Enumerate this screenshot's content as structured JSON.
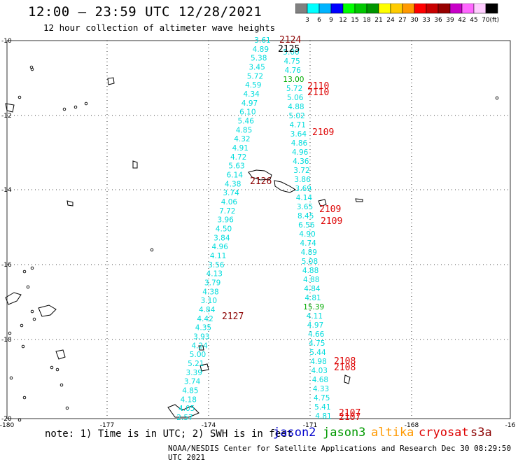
{
  "title": "12:00 – 23:59 UTC 12/28/2021",
  "subtitle": "12 hour collection of altimeter wave heights",
  "legend": {
    "unit_label": "(ft)",
    "ticks": [
      "3",
      "6",
      "9",
      "12",
      "15",
      "18",
      "21",
      "24",
      "27",
      "30",
      "33",
      "36",
      "39",
      "42",
      "45",
      "70"
    ],
    "colors": [
      "#808080",
      "#00ffff",
      "#00b4ff",
      "#0000ff",
      "#00ff00",
      "#00c800",
      "#009600",
      "#ffff00",
      "#ffcc00",
      "#ff9900",
      "#ff0000",
      "#c80000",
      "#960000",
      "#c800c8",
      "#ff66ff",
      "#ffccff",
      "#000000"
    ]
  },
  "map": {
    "lon_labels": [
      "-180",
      "-177",
      "-174",
      "-171",
      "-168",
      "-16"
    ],
    "lat_labels": [
      "-10",
      "-12",
      "-14",
      "-16",
      "-18",
      "-20"
    ],
    "colors": {
      "jason3_track": "#00dcdc",
      "cryosat": "#dd0000",
      "s3a": "#8b0000",
      "jason3_green": "#00aa00"
    },
    "track_left_values": [
      "3.61",
      "4.89",
      "5.38",
      "3.45",
      "5.72",
      "4.59",
      "4.34",
      "4.97",
      "6.10",
      "5.46",
      "4.85",
      "4.32",
      "4.91",
      "4.72",
      "5.63",
      "6.14",
      "4.38",
      "3.74",
      "4.06",
      "7.72",
      "3.96",
      "4.50",
      "3.84",
      "4.96",
      "4.11",
      "3.56",
      "4.13",
      "3.79",
      "4.38",
      "3.10",
      "4.84",
      "4.42",
      "4.35",
      "3.93",
      "4.24",
      "5.00",
      "5.21",
      "3.39",
      "3.74",
      "4.85",
      "4.18",
      "4.05",
      "2.57"
    ],
    "track_right_values": [
      "5.00",
      "4.75",
      "4.76",
      "13.00",
      "5.72",
      "5.06",
      "4.88",
      "5.02",
      "4.71",
      "3.64",
      "4.86",
      "4.96",
      "4.36",
      "3.72",
      "3.86",
      "3.69",
      "4.14",
      "3.65",
      "8.45",
      "6.56",
      "4.90",
      "4.74",
      "4.89",
      "5.08",
      "4.88",
      "4.88",
      "4.84",
      "4.81",
      "15.39",
      "4.11",
      "4.97",
      "4.66",
      "4.75",
      "5.44",
      "4.98",
      "4.03",
      "4.68",
      "4.33",
      "4.75",
      "5.41",
      "4.81"
    ],
    "time_labels": [
      {
        "text": "2124",
        "kind": "s3a"
      },
      {
        "text": "2125",
        "kind": "black"
      },
      {
        "text": "2110",
        "kind": "cryosat"
      },
      {
        "text": "2110",
        "kind": "cryosat"
      },
      {
        "text": "2109",
        "kind": "cryosat"
      },
      {
        "text": "2126",
        "kind": "s3a"
      },
      {
        "text": "2109",
        "kind": "cryosat"
      },
      {
        "text": "2109",
        "kind": "cryosat"
      },
      {
        "text": "2127",
        "kind": "s3a"
      },
      {
        "text": "2108",
        "kind": "cryosat"
      },
      {
        "text": "2108",
        "kind": "cryosat"
      },
      {
        "text": "2107",
        "kind": "cryosat"
      },
      {
        "text": "2107",
        "kind": "cryosat"
      }
    ]
  },
  "note": "note: 1) Time is in UTC; 2) SWH is in feet",
  "satellites": [
    {
      "name": "jason2",
      "color": "#0000cc"
    },
    {
      "name": "jason3",
      "color": "#009900"
    },
    {
      "name": "altika",
      "color": "#ff9900"
    },
    {
      "name": "cryosat",
      "color": "#dd0000"
    },
    {
      "name": "s3a",
      "color": "#8b0000"
    }
  ],
  "footer": "NOAA/NESDIS Center for Satellite Applications and Research   Dec 30 08:29:50 UTC 2021"
}
